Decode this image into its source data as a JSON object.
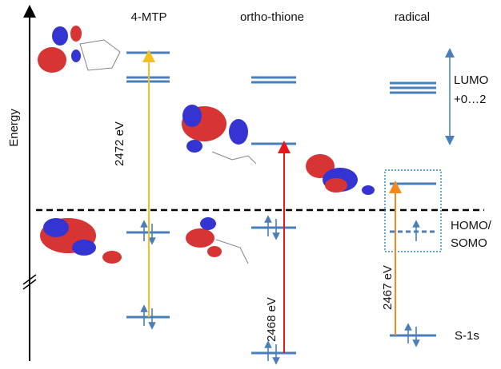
{
  "axis_label": "Energy",
  "columns": [
    {
      "label": "4-MTP",
      "transition": "2472 eV"
    },
    {
      "label": "ortho-thione",
      "transition": "2468 eV"
    },
    {
      "label": "radical",
      "transition": "2467 eV"
    }
  ],
  "annotations": {
    "lumo": [
      "LUMO",
      "+0…2"
    ],
    "homo": [
      "HOMO/",
      "SOMO"
    ],
    "core": "S-1s"
  }
}
